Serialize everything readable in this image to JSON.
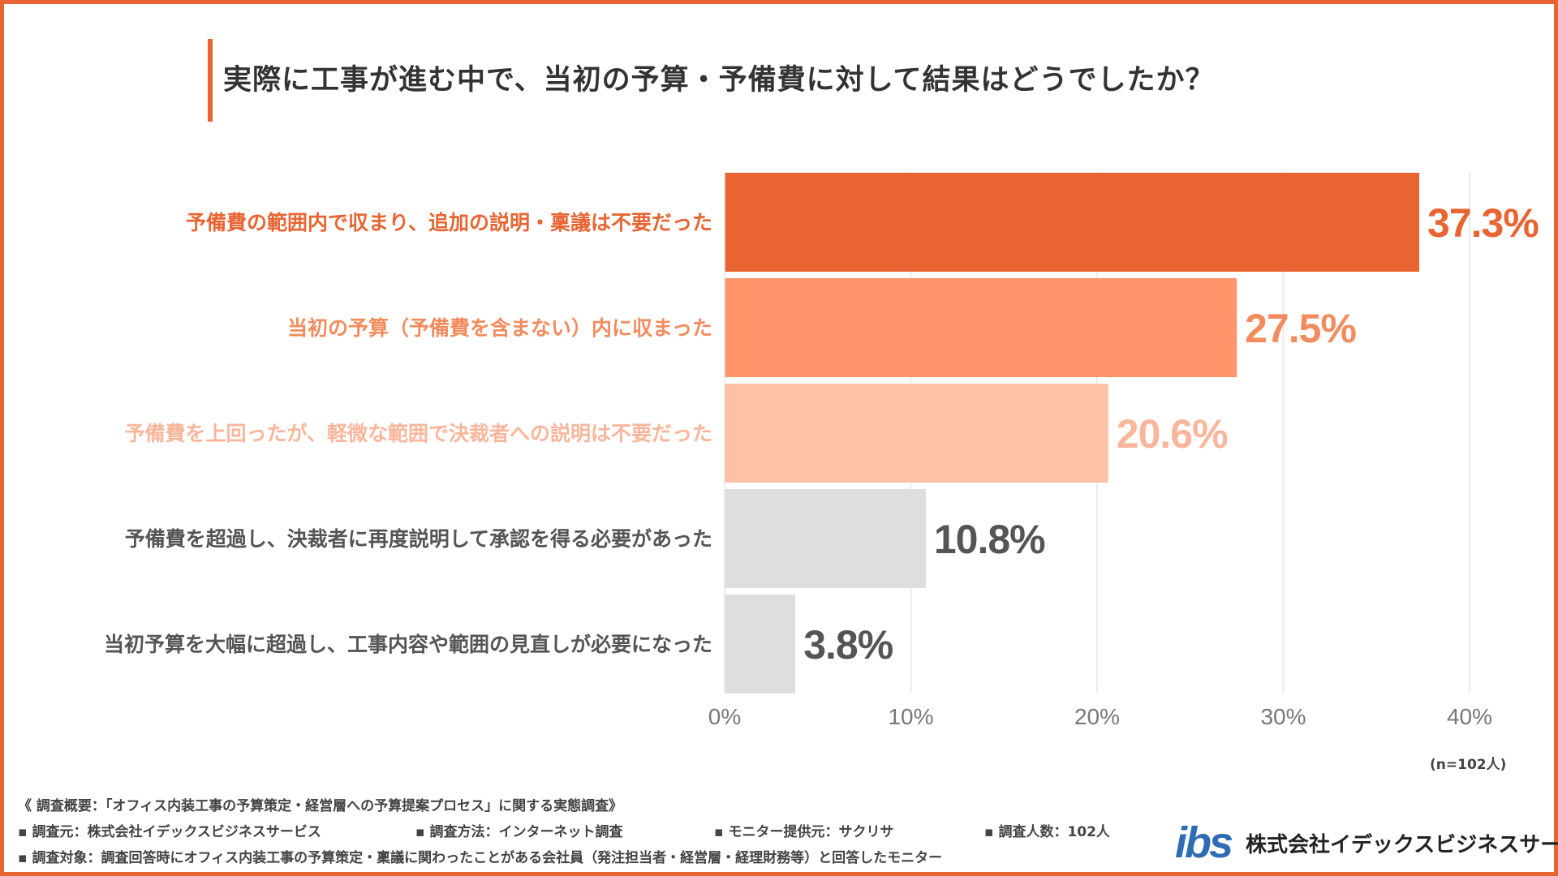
{
  "title": "実際に工事が進む中で、当初の予算・予備費に対して結果はどうでしたか？",
  "chart_data": {
    "type": "bar",
    "orientation": "horizontal",
    "categories": [
      "予備費の範囲内で収まり、追加の説明・稟議は不要だった",
      "当初の予算（予備費を含まない）内に収まった",
      "予備費を上回ったが、軽微な範囲で決裁者への説明は不要だった",
      "予備費を超過し、決裁者に再度説明して承認を得る必要があった",
      "当初予算を大幅に超過し、工事内容や範囲の見直しが必要になった"
    ],
    "values": [
      37.3,
      27.5,
      20.6,
      10.8,
      3.8
    ],
    "value_labels": [
      "37.3%",
      "27.5%",
      "20.6%",
      "10.8%",
      "3.8%"
    ],
    "bar_colors": [
      "#E86533",
      "#FF9369",
      "#FFC0A8",
      "#DEDEDE",
      "#DEDEDE"
    ],
    "label_colors": [
      "#E86533",
      "#F28C5E",
      "#F9B69B",
      "#555555",
      "#555555"
    ],
    "xlim": [
      0,
      40
    ],
    "xticks": [
      "0%",
      "10%",
      "20%",
      "30%",
      "40%"
    ],
    "grid": true,
    "sample_size": "(n=102人)"
  },
  "notes": {
    "overview": "《 調査概要：「オフィス内装工事の予算策定・経営層への予算提案プロセス」に関する実態調査》",
    "source": "▪ 調査元：株式会社イデックスビジネスサービス",
    "method": "▪ 調査方法：インターネット調査",
    "provider": "▪ モニター提供元：サクリサ",
    "count": "▪ 調査人数：102人",
    "target": "▪ 調査対象：調査回答時にオフィス内装工事の予算策定・稟議に関わったことがある会社員（発注担当者・経営層・経理財務等）と回答したモニター"
  },
  "logo": {
    "mark_text": "ibs",
    "company": "株式会社イデックスビジネスサービス",
    "mark_color": "#2E6DB4",
    "accent_color": "#E86533"
  }
}
